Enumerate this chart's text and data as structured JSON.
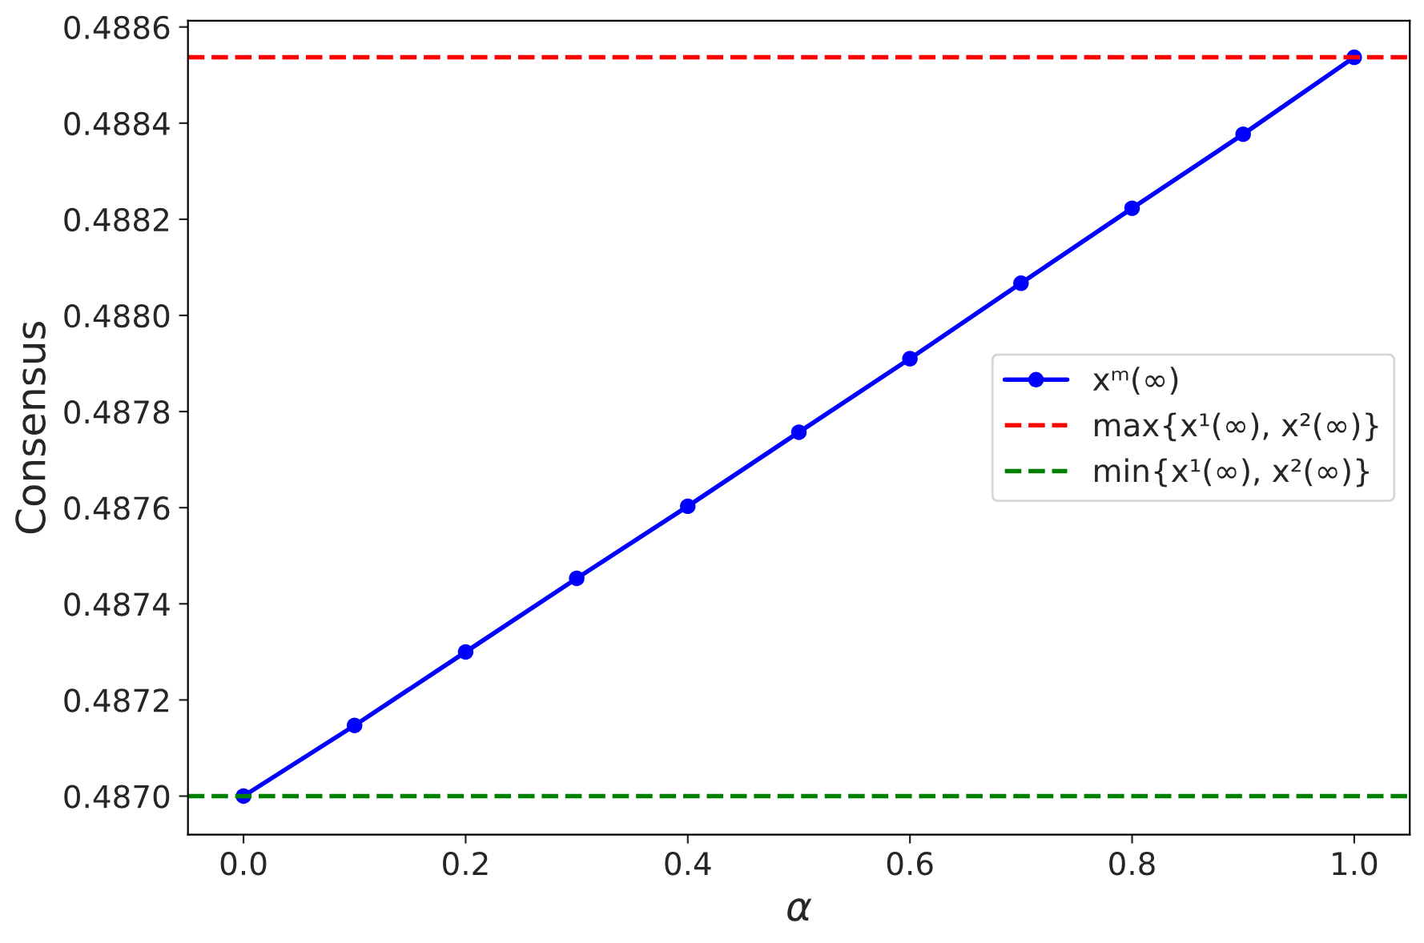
{
  "chart_data": {
    "type": "line",
    "xlabel": "α",
    "ylabel": "Consensus",
    "x": [
      0.0,
      0.1,
      0.2,
      0.3,
      0.4,
      0.5,
      0.6,
      0.7,
      0.8,
      0.9,
      1.0
    ],
    "series": [
      {
        "name": "xᵐ(∞)",
        "color": "#0000ff",
        "values": [
          0.487,
          0.487147,
          0.4873,
          0.487453,
          0.487603,
          0.487757,
          0.48791,
          0.488067,
          0.488223,
          0.488377,
          0.488537
        ]
      }
    ],
    "ref_lines": [
      {
        "axis": "y",
        "value": 0.488537,
        "label": "max{x¹(∞), x²(∞)}",
        "color": "#ff0000",
        "line_style": "dashed"
      },
      {
        "axis": "y",
        "value": 0.487,
        "label": "min{x¹(∞), x²(∞)}",
        "color": "#008000",
        "line_style": "dashed"
      }
    ],
    "marker": "circle",
    "line_style": "solid",
    "grid": false,
    "legend": "right",
    "xlim": [
      -0.05,
      1.05
    ],
    "xticks": [
      {
        "value": 0.0,
        "label": "0.0"
      },
      0.2,
      0.4,
      0.6,
      0.8,
      {
        "value": 1.0,
        "label": "1.0"
      }
    ],
    "ylim": [
      0.48692,
      0.488613
    ],
    "yticks": [
      {
        "value": 0.487,
        "label": "0.4870"
      },
      {
        "value": 0.4872,
        "label": "0.4872"
      },
      {
        "value": 0.4874,
        "label": "0.4874"
      },
      {
        "value": 0.4876,
        "label": "0.4876"
      },
      {
        "value": 0.4878,
        "label": "0.4878"
      },
      {
        "value": 0.488,
        "label": "0.4880"
      },
      {
        "value": 0.4882,
        "label": "0.4882"
      },
      {
        "value": 0.4884,
        "label": "0.4884"
      },
      {
        "value": 0.4886,
        "label": "0.4886"
      }
    ]
  }
}
